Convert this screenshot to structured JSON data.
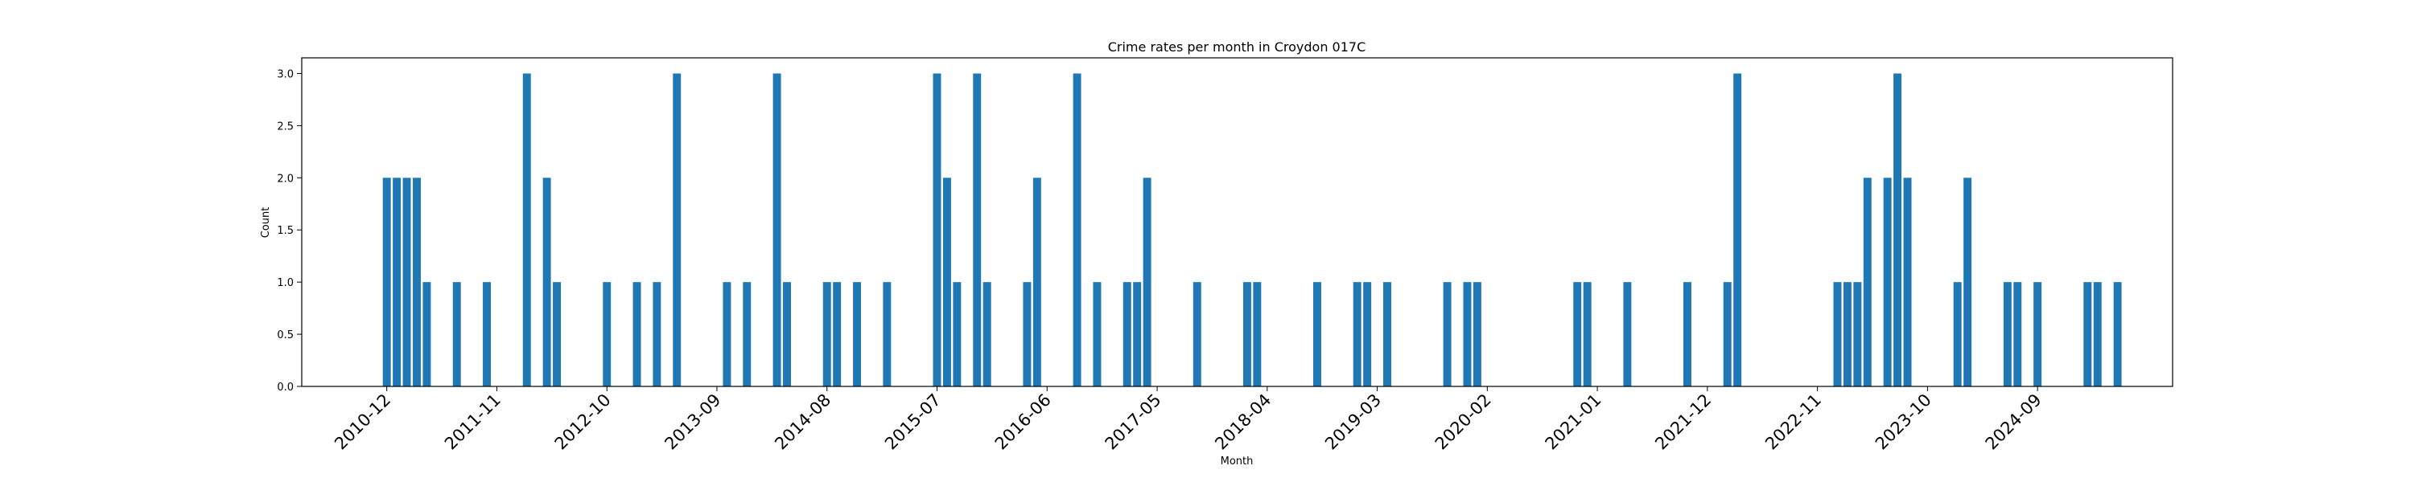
{
  "chart_data": {
    "type": "bar",
    "title": "Crime rates per month in Croydon 017C",
    "xlabel": "Month",
    "ylabel": "Count",
    "ylim": [
      0,
      3.15
    ],
    "xlim": [
      -8.5,
      178.5
    ],
    "yticks": [
      "0.0",
      "0.5",
      "1.0",
      "1.5",
      "2.0",
      "2.5",
      "3.0"
    ],
    "xticks": [
      "2010-12",
      "2011-11",
      "2012-10",
      "2013-09",
      "2014-08",
      "2015-07",
      "2016-06",
      "2017-05",
      "2018-04",
      "2019-03",
      "2020-02",
      "2021-01",
      "2021-12",
      "2022-11",
      "2023-10",
      "2024-09"
    ],
    "grid": false,
    "color": "#1f77b4",
    "series": [
      {
        "x": [
          "2010-12",
          "2011-01",
          "2011-02",
          "2011-03",
          "2011-04",
          "2011-07",
          "2011-10",
          "2012-02",
          "2012-04",
          "2012-05",
          "2012-10",
          "2013-01",
          "2013-03",
          "2013-05",
          "2013-10",
          "2013-12",
          "2014-03",
          "2014-04",
          "2014-08",
          "2014-09",
          "2014-11",
          "2015-02",
          "2015-07",
          "2015-08",
          "2015-09",
          "2015-11",
          "2015-12",
          "2016-04",
          "2016-05",
          "2016-09",
          "2016-11",
          "2017-02",
          "2017-03",
          "2017-04",
          "2017-09",
          "2018-02",
          "2018-03",
          "2018-09",
          "2019-01",
          "2019-02",
          "2019-04",
          "2019-10",
          "2019-12",
          "2020-01",
          "2020-11",
          "2020-12",
          "2021-04",
          "2021-10",
          "2022-02",
          "2022-03",
          "2023-01",
          "2023-02",
          "2023-03",
          "2023-04",
          "2023-06",
          "2023-07",
          "2023-08",
          "2024-01",
          "2024-02",
          "2024-06",
          "2024-07",
          "2024-09",
          "2025-02",
          "2025-03",
          "2025-05"
        ],
        "values": [
          2,
          2,
          2,
          2,
          1,
          1,
          1,
          3,
          2,
          1,
          1,
          1,
          1,
          3,
          1,
          1,
          3,
          1,
          1,
          1,
          1,
          1,
          3,
          2,
          1,
          3,
          1,
          1,
          2,
          3,
          1,
          1,
          1,
          2,
          1,
          1,
          1,
          1,
          1,
          1,
          1,
          1,
          1,
          1,
          1,
          1,
          1,
          1,
          1,
          3,
          1,
          1,
          1,
          2,
          2,
          3,
          2,
          1,
          2,
          1,
          1,
          1,
          1,
          1,
          1
        ]
      }
    ]
  }
}
